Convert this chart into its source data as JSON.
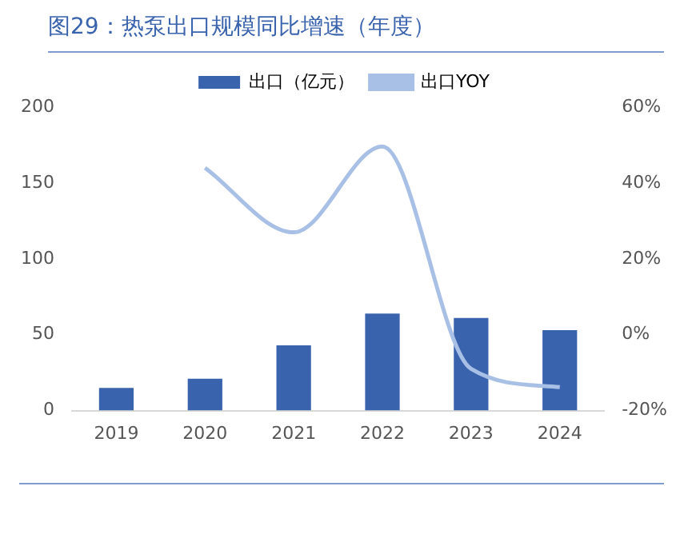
{
  "chart_data": {
    "type": "bar",
    "title": "图29：热泵出口规模同比增速（年度）",
    "categories": [
      "2019",
      "2020",
      "2021",
      "2022",
      "2023",
      "2024"
    ],
    "series": [
      {
        "name": "出口（亿元）",
        "color": "#3a63ae",
        "values": [
          15,
          21,
          43,
          64,
          61,
          53
        ]
      },
      {
        "name": "出口YOY",
        "type": "line",
        "axis": "y2",
        "color": "#a9c0e6",
        "values": [
          null,
          44,
          27,
          49.6,
          -9,
          -13.8
        ]
      }
    ],
    "ylim": [
      0,
      200
    ],
    "yticks": [
      0,
      50,
      100,
      150,
      200
    ],
    "y2lim": [
      -20,
      60
    ],
    "y2ticks": [
      {
        "value": -20,
        "label": "-20%"
      },
      {
        "value": 0,
        "label": "0%"
      },
      {
        "value": 20,
        "label": "20%"
      },
      {
        "value": 40,
        "label": "40%"
      },
      {
        "value": 60,
        "label": "60%"
      }
    ],
    "grid": false,
    "legend": "top",
    "marker": "none"
  }
}
